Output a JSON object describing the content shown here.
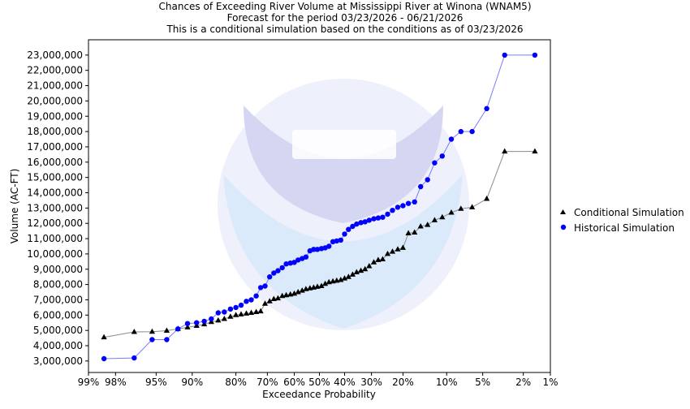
{
  "chart_data": {
    "type": "line",
    "title_lines": [
      "Chances of Exceeding River Volume at Mississippi River at Winona (WNAM5)",
      "Forecast for the period 03/23/2026 - 06/21/2026",
      "This is a conditional simulation based on the conditions as of 03/23/2026"
    ],
    "xlabel": "Exceedance Probability",
    "ylabel": "Volume (AC-FT)",
    "x_scale": "probability (normal quantile)",
    "x_ticks": [
      {
        "p": 99,
        "label": "99%"
      },
      {
        "p": 98,
        "label": "98%"
      },
      {
        "p": 95,
        "label": "95%"
      },
      {
        "p": 90,
        "label": "90%"
      },
      {
        "p": 80,
        "label": "80%"
      },
      {
        "p": 70,
        "label": "70%"
      },
      {
        "p": 60,
        "label": "60%"
      },
      {
        "p": 50,
        "label": "50%"
      },
      {
        "p": 40,
        "label": "40%"
      },
      {
        "p": 30,
        "label": "30%"
      },
      {
        "p": 20,
        "label": "20%"
      },
      {
        "p": 10,
        "label": "10%"
      },
      {
        "p": 5,
        "label": "5%"
      },
      {
        "p": 2,
        "label": "2%"
      },
      {
        "p": 1,
        "label": "1%"
      }
    ],
    "ylim": [
      2250000,
      24000000
    ],
    "y_ticks": [
      {
        "v": 3000000,
        "label": "3,000,000"
      },
      {
        "v": 4000000,
        "label": "4,000,000"
      },
      {
        "v": 5000000,
        "label": "5,000,000"
      },
      {
        "v": 6000000,
        "label": "6,000,000"
      },
      {
        "v": 7000000,
        "label": "7,000,000"
      },
      {
        "v": 8000000,
        "label": "8,000,000"
      },
      {
        "v": 9000000,
        "label": "9,000,000"
      },
      {
        "v": 10000000,
        "label": "10,000,000"
      },
      {
        "v": 11000000,
        "label": "11,000,000"
      },
      {
        "v": 12000000,
        "label": "12,000,000"
      },
      {
        "v": 13000000,
        "label": "13,000,000"
      },
      {
        "v": 14000000,
        "label": "14,000,000"
      },
      {
        "v": 15000000,
        "label": "15,000,000"
      },
      {
        "v": 16000000,
        "label": "16,000,000"
      },
      {
        "v": 17000000,
        "label": "17,000,000"
      },
      {
        "v": 18000000,
        "label": "18,000,000"
      },
      {
        "v": 19000000,
        "label": "19,000,000"
      },
      {
        "v": 20000000,
        "label": "20,000,000"
      },
      {
        "v": 21000000,
        "label": "21,000,000"
      },
      {
        "v": 22000000,
        "label": "22,000,000"
      },
      {
        "v": 23000000,
        "label": "23,000,000"
      }
    ],
    "legend_position": "right",
    "grid": false,
    "series": [
      {
        "name": "Conditional Simulation",
        "marker": "triangle",
        "color": "#000000",
        "line_color": "#8a8a8a",
        "x": [
          98.5,
          96.9,
          95.4,
          93.8,
          92.3,
          90.8,
          89.2,
          87.7,
          86.2,
          84.6,
          83.1,
          81.5,
          80.0,
          78.5,
          76.9,
          75.4,
          73.8,
          72.3,
          70.8,
          69.2,
          67.7,
          66.2,
          64.6,
          63.1,
          61.5,
          60.0,
          58.5,
          56.9,
          55.4,
          53.8,
          52.3,
          50.8,
          49.2,
          47.7,
          46.2,
          44.6,
          43.1,
          41.5,
          40.0,
          38.5,
          36.9,
          35.4,
          33.8,
          32.3,
          30.8,
          29.2,
          27.7,
          26.2,
          24.6,
          23.1,
          21.5,
          20.0,
          18.5,
          16.9,
          15.4,
          13.8,
          12.3,
          10.8,
          9.2,
          7.7,
          6.2,
          4.6,
          3.1,
          1.5
        ],
        "y": [
          4550000,
          4900000,
          4920000,
          4980000,
          5100000,
          5200000,
          5300000,
          5400000,
          5550000,
          5650000,
          5750000,
          5900000,
          6000000,
          6050000,
          6100000,
          6150000,
          6200000,
          6250000,
          6750000,
          6900000,
          7050000,
          7100000,
          7250000,
          7300000,
          7350000,
          7400000,
          7500000,
          7600000,
          7700000,
          7750000,
          7800000,
          7850000,
          7900000,
          8050000,
          8150000,
          8200000,
          8250000,
          8300000,
          8400000,
          8500000,
          8650000,
          8800000,
          8900000,
          9000000,
          9200000,
          9450000,
          9600000,
          9650000,
          10000000,
          10150000,
          10300000,
          10400000,
          11350000,
          11400000,
          11800000,
          11900000,
          12200000,
          12400000,
          12700000,
          12950000,
          13050000,
          13600000,
          16700000,
          16700000
        ]
      },
      {
        "name": "Historical Simulation",
        "marker": "circle",
        "color": "#0000ff",
        "line_color": "#7a7aff",
        "x": [
          98.5,
          96.9,
          95.4,
          93.8,
          92.3,
          90.8,
          89.2,
          87.7,
          86.2,
          84.6,
          83.1,
          81.5,
          80.0,
          78.5,
          76.9,
          75.4,
          73.8,
          72.3,
          70.8,
          69.2,
          67.7,
          66.2,
          64.6,
          63.1,
          61.5,
          60.0,
          58.5,
          56.9,
          55.4,
          53.8,
          52.3,
          50.8,
          49.2,
          47.7,
          46.2,
          44.6,
          43.1,
          41.5,
          40.0,
          38.5,
          36.9,
          35.4,
          33.8,
          32.3,
          30.8,
          29.2,
          27.7,
          26.2,
          24.6,
          23.1,
          21.5,
          20.0,
          18.5,
          16.9,
          15.4,
          13.8,
          12.3,
          10.8,
          9.2,
          7.7,
          6.2,
          4.6,
          3.1,
          1.5
        ],
        "y": [
          3150000,
          3200000,
          4400000,
          4400000,
          5100000,
          5450000,
          5500000,
          5600000,
          5750000,
          6150000,
          6200000,
          6400000,
          6500000,
          6650000,
          6900000,
          7000000,
          7250000,
          7800000,
          7900000,
          8500000,
          8750000,
          8900000,
          9100000,
          9350000,
          9400000,
          9450000,
          9600000,
          9700000,
          9800000,
          10200000,
          10300000,
          10300000,
          10350000,
          10400000,
          10500000,
          10800000,
          10850000,
          10900000,
          11300000,
          11600000,
          11800000,
          11950000,
          12050000,
          12100000,
          12200000,
          12300000,
          12350000,
          12400000,
          12600000,
          12850000,
          13050000,
          13150000,
          13300000,
          13400000,
          14400000,
          14850000,
          15950000,
          16400000,
          17500000,
          18000000,
          18000000,
          19500000,
          23000000,
          23000000
        ]
      }
    ]
  }
}
